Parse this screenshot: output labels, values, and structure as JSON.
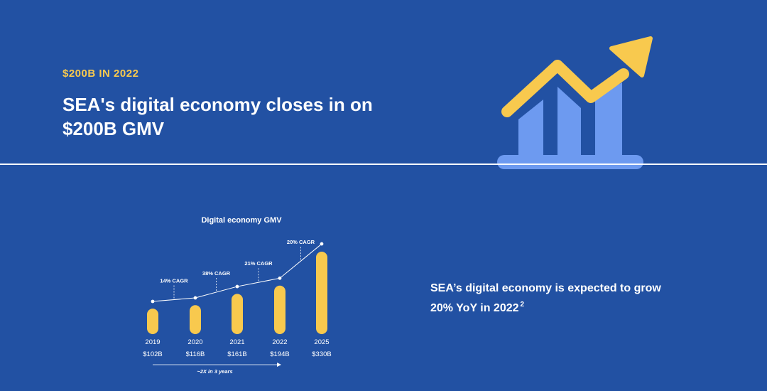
{
  "header": {
    "eyebrow": "$200B IN 2022",
    "headline": "SEA's digital economy closes in on $200B GMV"
  },
  "icons": {
    "hero": "growth-chart-arrow-icon"
  },
  "colors": {
    "background": "#2251a3",
    "accent_yellow": "#f8c94e",
    "hero_bars": "#6d9af0",
    "white": "#ffffff"
  },
  "statement": {
    "text": "SEA’s digital economy is expected to grow 20% YoY in 2022",
    "footnote": "2"
  },
  "chart_data": {
    "type": "bar",
    "title": "Digital economy GMV",
    "categories": [
      "2019",
      "2020",
      "2021",
      "2022",
      "2025"
    ],
    "value_labels": [
      "$102B",
      "$116B",
      "$161B",
      "$194B",
      "$330B"
    ],
    "series": [
      {
        "values": [
          102,
          116,
          161,
          194,
          330
        ]
      }
    ],
    "trend_line": true,
    "cagr_labels": [
      "14% CAGR",
      "38% CAGR",
      "21% CAGR",
      "20% CAGR"
    ],
    "span_annotation": "~2X in 3 years",
    "grid": false,
    "legend": "none"
  }
}
